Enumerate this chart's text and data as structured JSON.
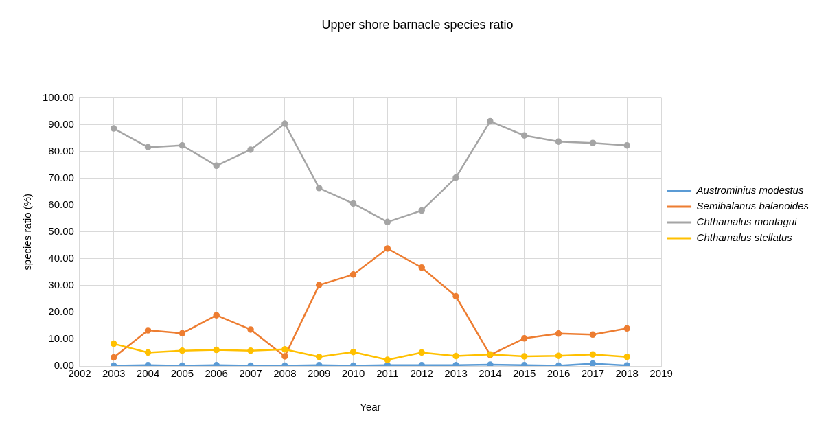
{
  "chart_data": {
    "type": "line",
    "title": "Upper shore barnacle species ratio",
    "xlabel": "Year",
    "ylabel": "species ratio (%)",
    "x": [
      2003,
      2004,
      2005,
      2006,
      2007,
      2008,
      2009,
      2010,
      2011,
      2012,
      2013,
      2014,
      2015,
      2016,
      2017,
      2018
    ],
    "xlim": [
      2002,
      2019
    ],
    "xticks": [
      2002,
      2003,
      2004,
      2005,
      2006,
      2007,
      2008,
      2009,
      2010,
      2011,
      2012,
      2013,
      2014,
      2015,
      2016,
      2017,
      2018,
      2019
    ],
    "ylim": [
      0,
      100
    ],
    "yticks": [
      {
        "value": 0,
        "label": "0.00"
      },
      {
        "value": 10,
        "label": "10.00"
      },
      {
        "value": 20,
        "label": "20.00"
      },
      {
        "value": 30,
        "label": "30.00"
      },
      {
        "value": 40,
        "label": "40.00"
      },
      {
        "value": 50,
        "label": "50.00"
      },
      {
        "value": 60,
        "label": "60.00"
      },
      {
        "value": 70,
        "label": "70.00"
      },
      {
        "value": 80,
        "label": "80.00"
      },
      {
        "value": 90,
        "label": "90.00"
      },
      {
        "value": 100,
        "label": "100.00"
      }
    ],
    "grid": true,
    "legend": "right",
    "marker": "circle",
    "line_style": "solid",
    "series": [
      {
        "name": "Austrominius modestus",
        "color": "#5b9bd5",
        "values": [
          0.1,
          0.3,
          0.1,
          0.3,
          0.1,
          0.1,
          0.3,
          0.1,
          0.3,
          0.3,
          0.3,
          0.5,
          0.3,
          0.1,
          0.9,
          0.2
        ]
      },
      {
        "name": "Semibalanus balanoides",
        "color": "#ed7d31",
        "values": [
          3.2,
          13.3,
          12.2,
          18.9,
          13.6,
          3.6,
          30.2,
          34.1,
          43.8,
          36.7,
          26.0,
          4.1,
          10.3,
          12.1,
          11.7,
          14.0
        ]
      },
      {
        "name": "Chthamalus montagui",
        "color": "#a5a5a5",
        "values": [
          88.6,
          81.6,
          82.3,
          74.7,
          80.7,
          90.4,
          66.4,
          60.6,
          53.7,
          58.0,
          70.3,
          91.3,
          86.0,
          83.7,
          83.2,
          82.3
        ]
      },
      {
        "name": "Chthamalus stellatus",
        "color": "#ffc000",
        "values": [
          8.3,
          5.0,
          5.7,
          6.0,
          5.7,
          6.2,
          3.4,
          5.2,
          2.3,
          5.0,
          3.7,
          4.3,
          3.6,
          3.8,
          4.3,
          3.4
        ]
      }
    ]
  }
}
